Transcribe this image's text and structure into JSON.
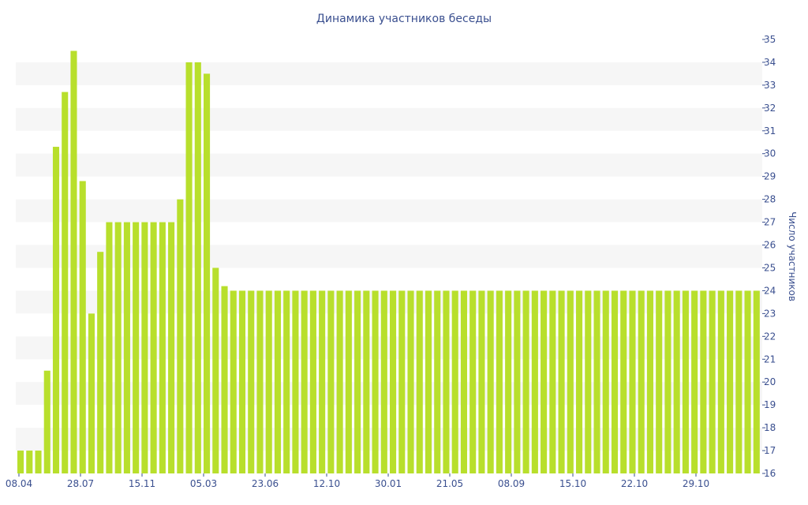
{
  "chart_data": {
    "type": "bar",
    "title": "Динамика участников беседы",
    "xlabel": "",
    "ylabel": "Число участников",
    "ylim": [
      16,
      35
    ],
    "y_ticks": [
      16,
      17,
      18,
      19,
      20,
      21,
      22,
      23,
      24,
      25,
      26,
      27,
      28,
      29,
      30,
      31,
      32,
      33,
      34,
      35
    ],
    "x_tick_labels": [
      "08.04",
      "28.07",
      "15.11",
      "05.03",
      "23.06",
      "12.10",
      "30.01",
      "21.05",
      "08.09",
      "15.10",
      "22.10",
      "29.10"
    ],
    "grid": "horizontal bands",
    "y_axis_position": "right",
    "bar_color": "#b8df2c",
    "band_color": "#f6f6f6",
    "text_color": "#3a4f8f",
    "series": [
      {
        "values": [
          17,
          17,
          17,
          20.5,
          30.3,
          32.7,
          34.5,
          28.8,
          23,
          25.7,
          27,
          27,
          27,
          27,
          27,
          27,
          27,
          27,
          28,
          34,
          34,
          33.5,
          25,
          24.2,
          24,
          24,
          24,
          24,
          24,
          24,
          24,
          24,
          24,
          24,
          24,
          24,
          24,
          24,
          24,
          24,
          24,
          24,
          24,
          24,
          24,
          24,
          24,
          24,
          24,
          24,
          24,
          24,
          24,
          24,
          24,
          24,
          24,
          24,
          24,
          24,
          24,
          24,
          24,
          24,
          24,
          24,
          24,
          24,
          24,
          24,
          24,
          24,
          24,
          24,
          24,
          24,
          24,
          24,
          24,
          24,
          24,
          24,
          24,
          24
        ]
      }
    ]
  }
}
